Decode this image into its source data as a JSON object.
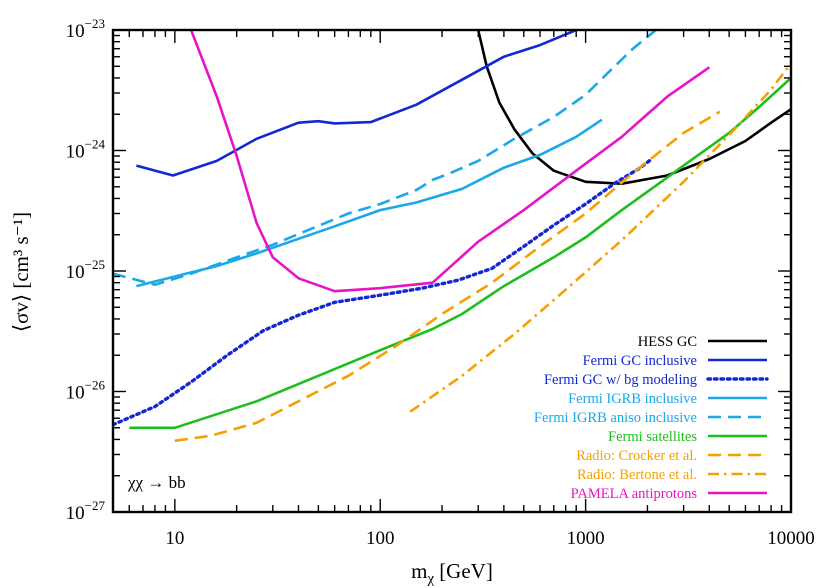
{
  "chart_data": {
    "type": "line",
    "title": "",
    "xlabel": "m",
    "xlabel_sub": "χ",
    "xlabel_units": "[GeV]",
    "ylabel": "⟨σv⟩ [cm³ s⁻¹]",
    "xscale": "log",
    "yscale": "log",
    "xlim": [
      5,
      10000
    ],
    "ylim": [
      1e-27,
      1e-23
    ],
    "x_ticks": [
      {
        "value": 10,
        "label": "10"
      },
      {
        "value": 100,
        "label": "100"
      },
      {
        "value": 1000,
        "label": "1000"
      },
      {
        "value": 10000,
        "label": "10000"
      }
    ],
    "y_ticks": [
      {
        "value": 1e-27,
        "base": "10",
        "exp": "−27"
      },
      {
        "value": 1e-26,
        "base": "10",
        "exp": "−26"
      },
      {
        "value": 1e-25,
        "base": "10",
        "exp": "−25"
      },
      {
        "value": 1e-24,
        "base": "10",
        "exp": "−24"
      },
      {
        "value": 1e-23,
        "base": "10",
        "exp": "−23"
      }
    ],
    "grid": false,
    "legend_position": "bottom-right",
    "annotation": "χχ → bb",
    "series": [
      {
        "name": "HESS GC",
        "color": "#000000",
        "dash": "solid",
        "points": [
          [
            300,
            1e-23
          ],
          [
            330,
            5e-24
          ],
          [
            380,
            2.5e-24
          ],
          [
            450,
            1.5e-24
          ],
          [
            550,
            9.5e-25
          ],
          [
            700,
            6.8e-25
          ],
          [
            1000,
            5.5e-25
          ],
          [
            1500,
            5.3e-25
          ],
          [
            2500,
            6.2e-25
          ],
          [
            4000,
            8.5e-25
          ],
          [
            6000,
            1.2e-24
          ],
          [
            8000,
            1.7e-24
          ],
          [
            10000,
            2.2e-24
          ]
        ]
      },
      {
        "name": "Fermi GC inclusive",
        "color": "#1428d2",
        "dash": "solid",
        "points": [
          [
            6.5,
            7.5e-25
          ],
          [
            9.8,
            6.2e-25
          ],
          [
            16,
            8.2e-25
          ],
          [
            25,
            1.25e-24
          ],
          [
            40,
            1.7e-24
          ],
          [
            50,
            1.75e-24
          ],
          [
            60,
            1.68e-24
          ],
          [
            90,
            1.72e-24
          ],
          [
            150,
            2.4e-24
          ],
          [
            280,
            4.3e-24
          ],
          [
            400,
            6e-24
          ],
          [
            600,
            7.5e-24
          ],
          [
            900,
            1e-23
          ]
        ]
      },
      {
        "name": "Fermi GC w/ bg modeling",
        "color": "#1428d2",
        "dash": "dotted",
        "points": [
          [
            5,
            5.3e-27
          ],
          [
            8,
            7.5e-27
          ],
          [
            12,
            1.2e-26
          ],
          [
            18,
            2e-26
          ],
          [
            27,
            3.2e-26
          ],
          [
            40,
            4.3e-26
          ],
          [
            60,
            5.5e-26
          ],
          [
            100,
            6.3e-26
          ],
          [
            160,
            7.2e-26
          ],
          [
            240,
            8.4e-26
          ],
          [
            350,
            1.05e-25
          ],
          [
            500,
            1.6e-25
          ],
          [
            700,
            2.4e-25
          ],
          [
            1000,
            3.6e-25
          ],
          [
            1400,
            5.4e-25
          ],
          [
            1800,
            7e-25
          ],
          [
            2100,
            8.5e-25
          ]
        ]
      },
      {
        "name": "Fermi IGRB inclusive",
        "color": "#1aa8e8",
        "dash": "solid",
        "points": [
          [
            6.5,
            7.5e-26
          ],
          [
            10,
            9e-26
          ],
          [
            16,
            1.1e-25
          ],
          [
            25,
            1.4e-25
          ],
          [
            40,
            1.85e-25
          ],
          [
            60,
            2.35e-25
          ],
          [
            100,
            3.2e-25
          ],
          [
            150,
            3.7e-25
          ],
          [
            250,
            4.8e-25
          ],
          [
            400,
            7.2e-25
          ],
          [
            600,
            9.2e-25
          ],
          [
            900,
            1.3e-24
          ],
          [
            1200,
            1.8e-24
          ]
        ]
      },
      {
        "name": "Fermi IGRB aniso inclusive",
        "color": "#1aa8e8",
        "dash": "dashed",
        "points": [
          [
            5,
            9.5e-26
          ],
          [
            8,
            7.7e-26
          ],
          [
            12,
            9.5e-26
          ],
          [
            20,
            1.3e-25
          ],
          [
            30,
            1.65e-25
          ],
          [
            45,
            2.2e-25
          ],
          [
            70,
            3e-25
          ],
          [
            100,
            3.6e-25
          ],
          [
            150,
            4.7e-25
          ],
          [
            180,
            5.7e-25
          ],
          [
            220,
            6.5e-25
          ],
          [
            300,
            8.2e-25
          ],
          [
            450,
            1.25e-24
          ],
          [
            700,
            1.9e-24
          ],
          [
            1000,
            2.9e-24
          ],
          [
            1300,
            4.5e-24
          ],
          [
            1700,
            7e-24
          ],
          [
            2200,
            1e-23
          ]
        ]
      },
      {
        "name": "Fermi satellites",
        "color": "#1ebe1e",
        "dash": "solid",
        "points": [
          [
            6,
            5e-27
          ],
          [
            10,
            5e-27
          ],
          [
            25,
            8.3e-27
          ],
          [
            50,
            1.35e-26
          ],
          [
            100,
            2.2e-26
          ],
          [
            180,
            3.3e-26
          ],
          [
            250,
            4.4e-26
          ],
          [
            400,
            7.5e-26
          ],
          [
            700,
            1.3e-25
          ],
          [
            1000,
            1.9e-25
          ],
          [
            1500,
            3.2e-25
          ],
          [
            2200,
            5.1e-25
          ],
          [
            3000,
            7.5e-25
          ],
          [
            5000,
            1.4e-24
          ],
          [
            7000,
            2.3e-24
          ],
          [
            10000,
            4e-24
          ]
        ]
      },
      {
        "name": "Radio: Crocker et al.",
        "color": "#f5a000",
        "dash": "dashed",
        "points": [
          [
            10,
            3.9e-27
          ],
          [
            15,
            4.3e-27
          ],
          [
            25,
            5.5e-27
          ],
          [
            40,
            8.3e-27
          ],
          [
            70,
            1.35e-26
          ],
          [
            120,
            2.4e-26
          ],
          [
            200,
            4.4e-26
          ],
          [
            350,
            8e-26
          ],
          [
            600,
            1.6e-25
          ],
          [
            1000,
            3e-25
          ],
          [
            1700,
            6.5e-25
          ],
          [
            3000,
            1.4e-24
          ],
          [
            4500,
            2.1e-24
          ]
        ]
      },
      {
        "name": "Radio: Bertone et al.",
        "color": "#f5a000",
        "dash": "dashdot",
        "points": [
          [
            140,
            6.8e-27
          ],
          [
            250,
            1.35e-26
          ],
          [
            450,
            3e-26
          ],
          [
            800,
            7e-26
          ],
          [
            1500,
            1.8e-25
          ],
          [
            3000,
            5.5e-25
          ],
          [
            5500,
            1.6e-24
          ],
          [
            8000,
            3.2e-24
          ],
          [
            10000,
            5.3e-24
          ]
        ]
      },
      {
        "name": "PAMELA antiprotons",
        "color": "#e614c8",
        "dash": "solid",
        "points": [
          [
            12,
            1e-23
          ],
          [
            16,
            2.8e-24
          ],
          [
            20,
            9e-25
          ],
          [
            25,
            2.5e-25
          ],
          [
            30,
            1.3e-25
          ],
          [
            40,
            8.7e-26
          ],
          [
            60,
            6.8e-26
          ],
          [
            100,
            7.2e-26
          ],
          [
            180,
            8e-26
          ],
          [
            300,
            1.75e-25
          ],
          [
            500,
            3.2e-25
          ],
          [
            900,
            6.8e-25
          ],
          [
            1500,
            1.3e-24
          ],
          [
            2500,
            2.8e-24
          ],
          [
            4000,
            4.9e-24
          ]
        ]
      }
    ]
  }
}
